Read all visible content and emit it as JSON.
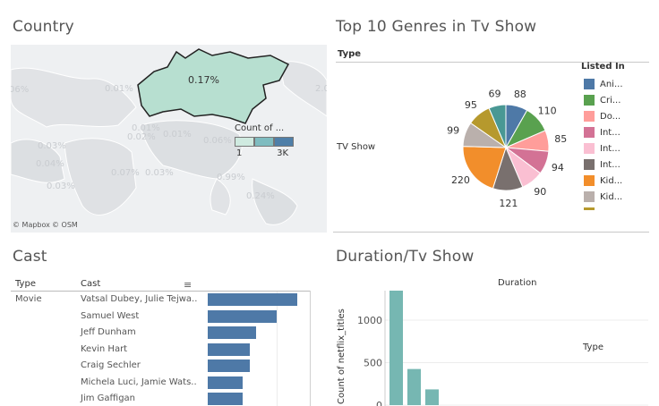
{
  "country": {
    "title": "Country",
    "highlight_label": "0.17%",
    "background_labels": [
      "06%",
      "0.01%",
      "0.03%",
      "0.01%",
      "0.01%",
      "0.02%",
      "0.06%",
      "0.04%",
      "0.99%",
      "0.24%",
      "0.03%",
      "0.07%",
      "0.03%",
      "2.0"
    ],
    "attribution": [
      "© Mapbox",
      "© OSM"
    ],
    "legend": {
      "title": "Count of ...",
      "min": "1",
      "max": "3K"
    }
  },
  "genres": {
    "title": "Top 10 Genres in Tv Show",
    "type_header": "Type",
    "row_label": "TV Show",
    "legend_title": "Listed In",
    "legend_items": [
      {
        "label": "Ani...",
        "color": "#4e79a7"
      },
      {
        "label": "Cri...",
        "color": "#59a14f"
      },
      {
        "label": "Do...",
        "color": "#ff9d9a"
      },
      {
        "label": "Int...",
        "color": "#d37295"
      },
      {
        "label": "Int...",
        "color": "#fabfd2"
      },
      {
        "label": "Int...",
        "color": "#79706e"
      },
      {
        "label": "Kid...",
        "color": "#f28e2b"
      },
      {
        "label": "Kid...",
        "color": "#bab0ac"
      }
    ],
    "slices": [
      {
        "value": 88,
        "color": "#4e79a7"
      },
      {
        "value": 110,
        "color": "#59a14f"
      },
      {
        "value": 85,
        "color": "#ff9d9a"
      },
      {
        "value": 94,
        "color": "#d37295"
      },
      {
        "value": 90,
        "color": "#fabfd2"
      },
      {
        "value": 121,
        "color": "#79706e"
      },
      {
        "value": 220,
        "color": "#f28e2b"
      },
      {
        "value": 99,
        "color": "#bab0ac"
      },
      {
        "value": 95,
        "color": "#b6992d"
      },
      {
        "value": 69,
        "color": "#499894"
      }
    ]
  },
  "cast": {
    "title": "Cast",
    "col_type": "Type",
    "col_cast": "Cast",
    "row_type": "Movie",
    "rows": [
      {
        "name": "Vatsal Dubey, Julie Tejwa..",
        "value": 1.0
      },
      {
        "name": "Samuel West",
        "value": 0.77
      },
      {
        "name": "Jeff Dunham",
        "value": 0.54
      },
      {
        "name": "Kevin Hart",
        "value": 0.47
      },
      {
        "name": "Craig Sechler",
        "value": 0.47
      },
      {
        "name": "Michela Luci, Jamie Wats..",
        "value": 0.39
      },
      {
        "name": "Jim Gaffigan",
        "value": 0.39
      }
    ]
  },
  "duration": {
    "title": "Duration/Tv Show",
    "header": "Duration",
    "type_label": "Type",
    "chart_data": {
      "type": "bar",
      "ylabel": "Count of netflix_titles",
      "y_ticks": [
        "1500",
        "1000",
        "500",
        "0"
      ],
      "ylim": [
        0,
        1700
      ],
      "values": [
        1795,
        425,
        185
      ]
    }
  }
}
